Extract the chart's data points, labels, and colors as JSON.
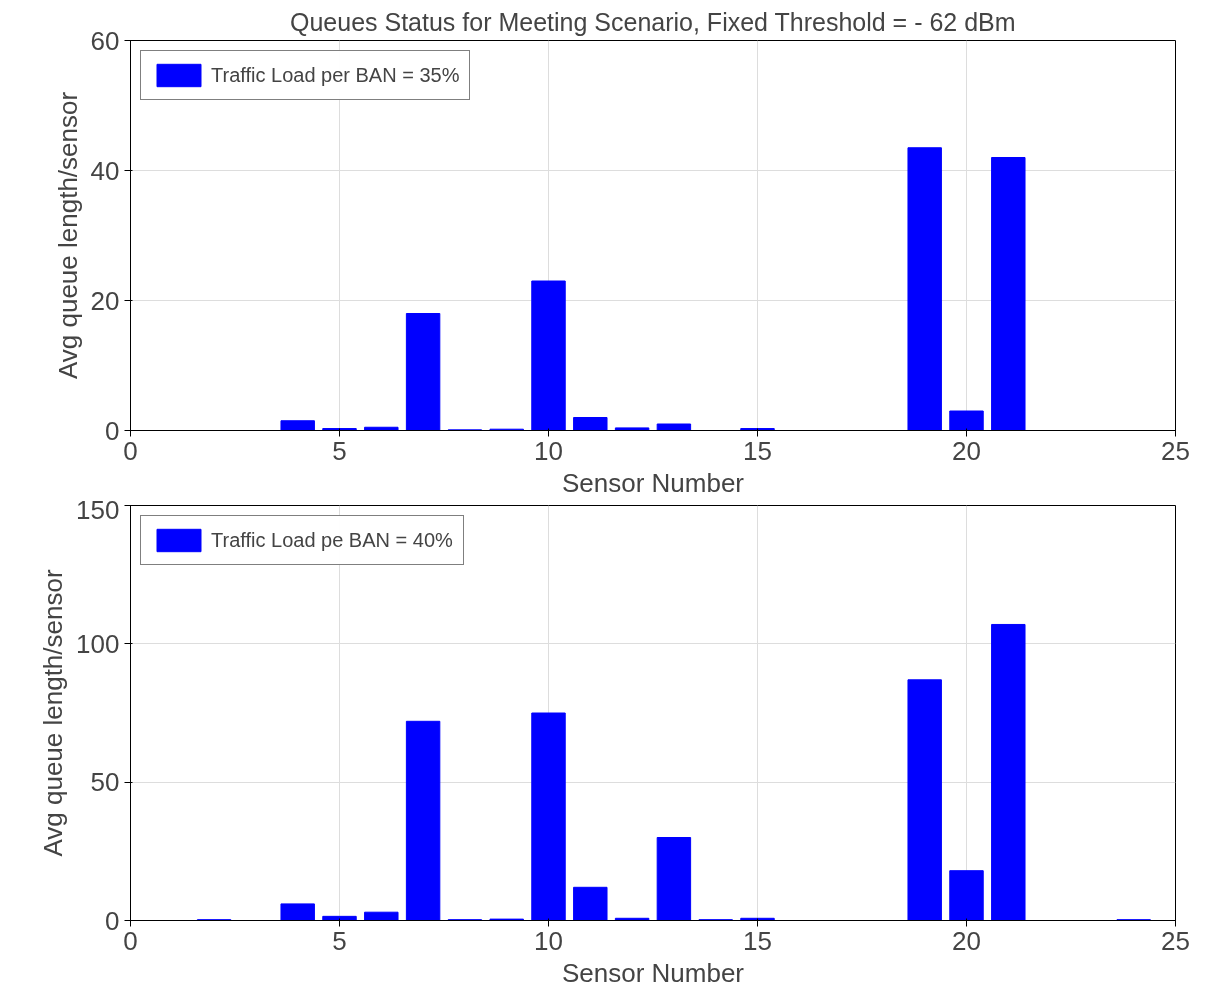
{
  "chart_data": [
    {
      "type": "bar",
      "title": "Queues Status for Meeting Scenario, Fixed Threshold = - 62 dBm",
      "xlabel": "Sensor Number",
      "ylabel": "Avg queue length/sensor",
      "x": [
        1,
        2,
        3,
        4,
        5,
        6,
        7,
        8,
        9,
        10,
        11,
        12,
        13,
        14,
        15,
        16,
        17,
        18,
        19,
        20,
        21,
        22,
        23,
        24
      ],
      "series": [
        {
          "name": "Traffic Load per BAN = 35%",
          "color": "#0000ff",
          "values": [
            0,
            0,
            0,
            1.5,
            0.3,
            0.5,
            18,
            0.1,
            0.2,
            23,
            2,
            0.4,
            1,
            0,
            0.3,
            0,
            0,
            0,
            43.5,
            3,
            42,
            0,
            0,
            0
          ]
        }
      ],
      "xlim": [
        0,
        25
      ],
      "xticks": [
        0,
        5,
        10,
        15,
        20,
        25
      ],
      "ylim": [
        0,
        60
      ],
      "yticks": [
        0,
        20,
        40,
        60
      ],
      "grid": true,
      "legend": "top left"
    },
    {
      "type": "bar",
      "xlabel": "Sensor Number",
      "ylabel": "Avg queue length/sensor",
      "x": [
        1,
        2,
        3,
        4,
        5,
        6,
        7,
        8,
        9,
        10,
        11,
        12,
        13,
        14,
        15,
        16,
        17,
        18,
        19,
        20,
        21,
        22,
        23,
        24
      ],
      "series": [
        {
          "name": "Traffic Load pe BAN = 40%",
          "color": "#0000ff",
          "values": [
            0,
            0.3,
            0,
            6,
            1.5,
            3,
            72,
            0.3,
            0.5,
            75,
            12,
            0.8,
            30,
            0.3,
            0.8,
            0,
            0,
            0,
            87,
            18,
            107,
            0,
            0,
            0.3
          ]
        }
      ],
      "xlim": [
        0,
        25
      ],
      "xticks": [
        0,
        5,
        10,
        15,
        20,
        25
      ],
      "ylim": [
        0,
        150
      ],
      "yticks": [
        0,
        50,
        100,
        150
      ],
      "grid": true,
      "legend": "top left"
    }
  ]
}
